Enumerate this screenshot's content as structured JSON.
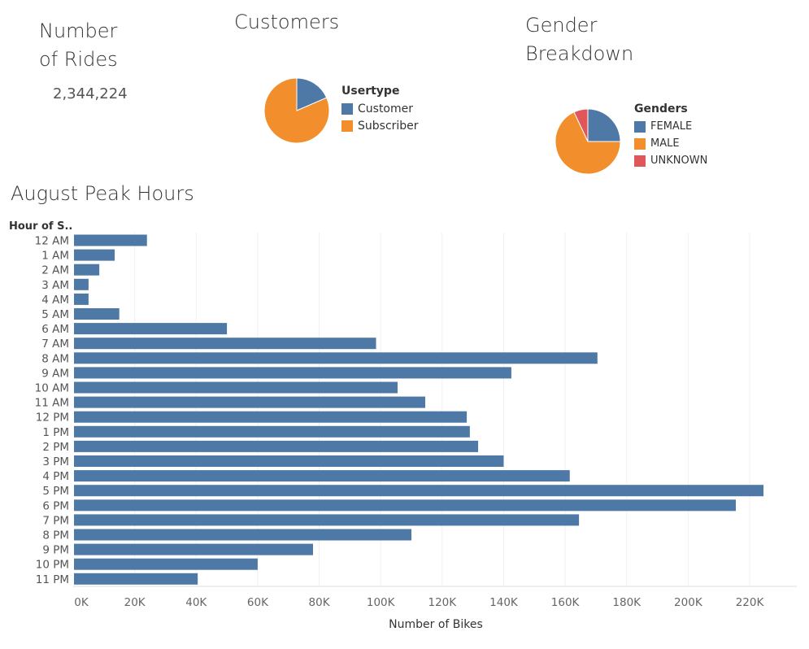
{
  "rides": {
    "title_line1": "Number",
    "title_line2": "of Rides",
    "value": "2,344,224"
  },
  "customers": {
    "title": "Customers",
    "legend_title": "Usertype",
    "items": [
      {
        "label": "Customer",
        "color": "#4e79a7"
      },
      {
        "label": "Subscriber",
        "color": "#f28e2b"
      }
    ]
  },
  "gender": {
    "title_line1": "Gender",
    "title_line2": "Breakdown",
    "legend_title": "Genders",
    "items": [
      {
        "label": "FEMALE",
        "color": "#4e79a7"
      },
      {
        "label": "MALE",
        "color": "#f28e2b"
      },
      {
        "label": "UNKNOWN",
        "color": "#e15759"
      }
    ]
  },
  "chart_data": [
    {
      "type": "pie",
      "title": "Customers",
      "legend_title": "Usertype",
      "categories": [
        "Customer",
        "Subscriber"
      ],
      "values": [
        18.5,
        81.5
      ],
      "colors": [
        "#4e79a7",
        "#f28e2b"
      ]
    },
    {
      "type": "pie",
      "title": "Gender Breakdown",
      "legend_title": "Genders",
      "categories": [
        "FEMALE",
        "MALE",
        "UNKNOWN"
      ],
      "values": [
        25,
        68,
        7
      ],
      "colors": [
        "#4e79a7",
        "#f28e2b",
        "#e15759"
      ]
    },
    {
      "type": "bar",
      "orientation": "horizontal",
      "title": "August Peak Hours",
      "ylabel": "Hour of S..",
      "xlabel": "Number of Bikes",
      "categories": [
        "12 AM",
        "1 AM",
        "2 AM",
        "3 AM",
        "4 AM",
        "5 AM",
        "6 AM",
        "7 AM",
        "8 AM",
        "9 AM",
        "10 AM",
        "11 AM",
        "12 PM",
        "1 PM",
        "2 PM",
        "3 PM",
        "4 PM",
        "5 PM",
        "6 PM",
        "7 PM",
        "8 PM",
        "9 PM",
        "10 PM",
        "11 PM"
      ],
      "values": [
        24000,
        13500,
        8500,
        5000,
        5000,
        15000,
        50000,
        98500,
        170500,
        142500,
        105500,
        114500,
        128000,
        129000,
        131700,
        140000,
        161500,
        224500,
        215500,
        164500,
        110000,
        78000,
        60000,
        40500
      ],
      "xlim": [
        0,
        230000
      ],
      "xticks": [
        0,
        20000,
        40000,
        60000,
        80000,
        100000,
        120000,
        140000,
        160000,
        180000,
        200000,
        220000
      ],
      "xtick_labels": [
        "0K",
        "20K",
        "40K",
        "60K",
        "80K",
        "100K",
        "120K",
        "140K",
        "160K",
        "180K",
        "200K",
        "220K"
      ],
      "color": "#4e79a7",
      "grid": "vertical"
    }
  ]
}
